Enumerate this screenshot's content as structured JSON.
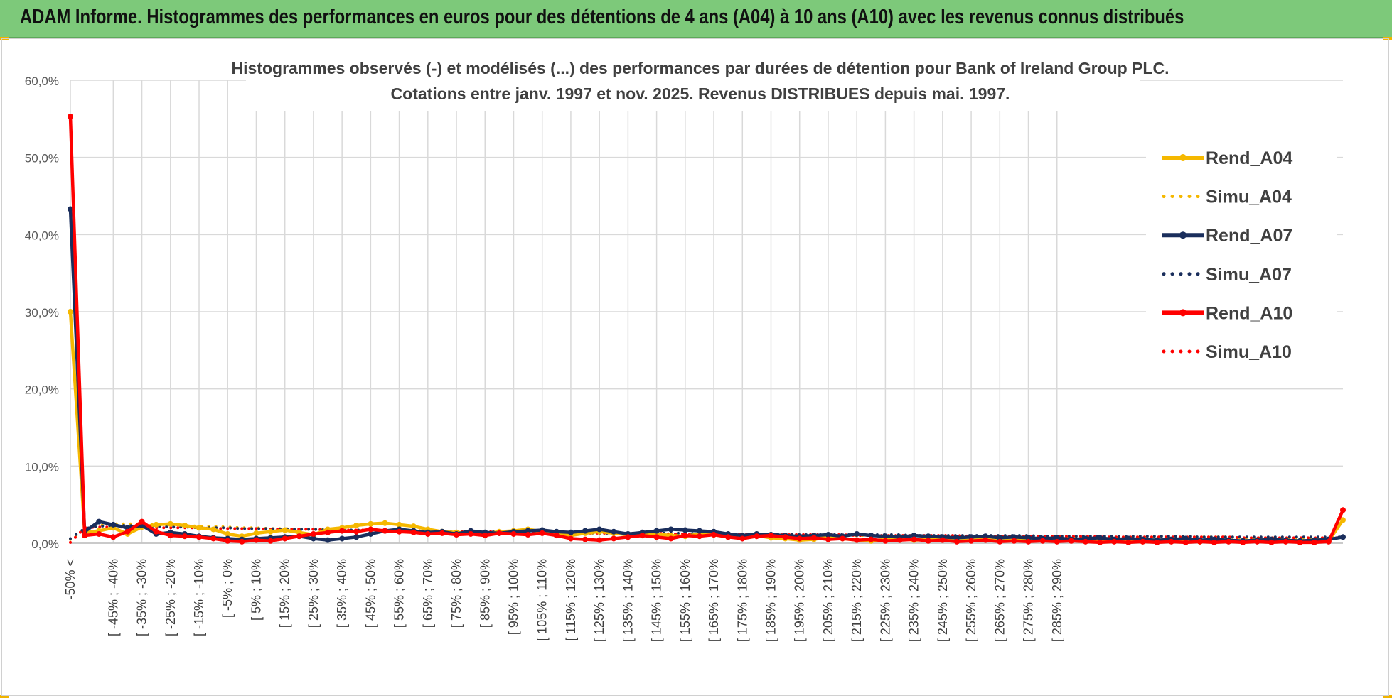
{
  "header": {
    "title": "ADAM Informe. Histogrammes des performances en euros pour des détentions de 4 ans (A04) à 10 ans (A10) avec les revenus connus distribués"
  },
  "colors": {
    "banner": "#7dc97a",
    "a04": "#f5b800",
    "a07": "#1a2e5c",
    "a10": "#ff0000",
    "grid": "#d9d9d9"
  },
  "chart_data": {
    "type": "line",
    "title": "Histogrammes observés (-) et modélisés (...) des performances par durées de détention pour Bank of Ireland Group PLC.",
    "subtitle": "Cotations entre janv. 1997 et nov. 2025. Revenus DISTRIBUES depuis mai. 1997.",
    "ylim": [
      0,
      60
    ],
    "y_ticks": [
      "0,0%",
      "10,0%",
      "20,0%",
      "30,0%",
      "40,0%",
      "50,0%",
      "60,0%"
    ],
    "grid": true,
    "legend_position": "right",
    "x_tick_labels": [
      "-50% <",
      "[ -45% ; -40%",
      "[ -35% ; -30%",
      "[ -25% ; -20%",
      "[ -15% ; -10%",
      "[ -5% ; 0%",
      "[ 5% ; 10%",
      "[ 15% ; 20%",
      "[ 25% ; 30%",
      "[ 35% ; 40%",
      "[ 45% ; 50%",
      "[ 55% ; 60%",
      "[ 65% ; 70%",
      "[ 75% ; 80%",
      "[ 85% ; 90%",
      "[ 95% ; 100%",
      "[ 105% ; 110%",
      "[ 115% ; 120%",
      "[ 125% ; 130%",
      "[ 135% ; 140%",
      "[ 145% ; 150%",
      "[ 155% ; 160%",
      "[ 165% ; 170%",
      "[ 175% ; 180%",
      "[ 185% ; 190%",
      "[ 195% ; 200%",
      "[ 205% ; 210%",
      "[ 215% ; 220%",
      "[ 225% ; 230%",
      "[ 235% ; 240%",
      "[ 245% ; 250%",
      "[ 255% ; 260%",
      "[ 265% ; 270%",
      "[ 275% ; 280%",
      "[ 285% ; 290%"
    ],
    "series": [
      {
        "name": "Rend_A04",
        "style": "solid",
        "color": "#f5b800",
        "values": [
          30.0,
          1.4,
          1.6,
          2.0,
          1.2,
          2.1,
          2.4,
          2.5,
          2.3,
          2.0,
          1.8,
          1.2,
          0.9,
          1.3,
          1.5,
          1.7,
          1.4,
          1.1,
          1.8,
          2.0,
          2.3,
          2.5,
          2.6,
          2.4,
          2.2,
          1.8,
          1.5,
          1.4,
          1.3,
          1.2,
          1.5,
          1.6,
          1.8,
          1.5,
          1.2,
          1.0,
          1.3,
          1.5,
          1.3,
          1.1,
          1.0,
          1.2,
          1.0,
          0.9,
          1.2,
          1.1,
          0.8,
          0.9,
          1.0,
          0.7,
          0.6,
          0.4,
          0.5,
          0.8,
          0.6,
          0.4,
          0.3,
          0.5,
          0.6,
          0.4,
          0.5,
          0.6,
          0.3,
          0.4,
          0.5,
          0.3,
          0.4,
          0.5,
          0.4,
          0.3,
          0.4,
          0.3,
          0.3,
          0.4,
          0.3,
          0.2,
          0.3,
          0.4,
          0.3,
          0.2,
          0.3,
          0.3,
          0.2,
          0.3,
          0.4,
          0.3,
          0.2,
          0.3,
          0.3,
          3.0
        ]
      },
      {
        "name": "Simu_A04",
        "style": "dotted",
        "color": "#f5b800",
        "values": [
          0.5,
          1.8,
          2.3,
          2.5,
          2.5,
          2.5,
          2.4,
          2.4,
          2.3,
          2.2,
          2.2,
          2.1,
          2.0,
          2.0,
          1.9,
          1.9,
          1.8,
          1.8,
          1.8,
          1.7,
          1.7,
          1.7,
          1.6,
          1.6,
          1.6,
          1.5,
          1.5,
          1.5,
          1.5,
          1.4,
          1.4,
          1.4,
          1.4,
          1.4,
          1.3,
          1.3,
          1.3,
          1.3,
          1.3,
          1.2,
          1.2,
          1.2,
          1.2,
          1.2,
          1.2,
          1.1,
          1.1,
          1.1,
          1.1,
          1.1,
          1.1,
          1.1,
          1.0,
          1.0,
          1.0,
          1.0,
          1.0,
          1.0,
          1.0,
          1.0,
          0.9,
          0.9,
          0.9,
          0.9,
          0.9,
          0.9,
          0.9,
          0.9,
          0.9,
          0.9,
          0.8,
          0.8,
          0.8,
          0.8,
          0.8,
          0.8,
          0.8,
          0.8,
          0.8,
          0.8,
          0.8,
          0.8,
          0.7,
          0.7,
          0.7,
          0.7,
          0.7,
          0.7,
          0.7,
          0.7
        ]
      },
      {
        "name": "Rend_A07",
        "style": "solid",
        "color": "#1a2e5c",
        "values": [
          43.3,
          1.5,
          2.8,
          2.4,
          2.0,
          2.3,
          1.2,
          1.4,
          1.2,
          0.9,
          0.7,
          0.6,
          0.5,
          0.6,
          0.7,
          0.8,
          0.9,
          0.6,
          0.4,
          0.6,
          0.8,
          1.2,
          1.6,
          1.8,
          1.6,
          1.4,
          1.5,
          1.2,
          1.6,
          1.4,
          1.3,
          1.5,
          1.6,
          1.7,
          1.5,
          1.4,
          1.6,
          1.8,
          1.5,
          1.2,
          1.4,
          1.6,
          1.8,
          1.7,
          1.6,
          1.5,
          1.2,
          1.0,
          1.2,
          1.1,
          1.0,
          0.9,
          1.0,
          1.1,
          0.9,
          1.2,
          1.0,
          0.9,
          0.8,
          1.0,
          0.9,
          0.8,
          0.7,
          0.8,
          0.9,
          0.7,
          0.8,
          0.7,
          0.6,
          0.7,
          0.5,
          0.6,
          0.7,
          0.5,
          0.6,
          0.5,
          0.4,
          0.5,
          0.6,
          0.4,
          0.5,
          0.4,
          0.3,
          0.4,
          0.5,
          0.4,
          0.3,
          0.4,
          0.5,
          0.8
        ]
      },
      {
        "name": "Simu_A07",
        "style": "dotted",
        "color": "#1a2e5c",
        "values": [
          0.6,
          1.9,
          2.2,
          2.3,
          2.3,
          2.2,
          2.2,
          2.1,
          2.1,
          2.0,
          2.0,
          2.0,
          1.9,
          1.9,
          1.9,
          1.8,
          1.8,
          1.8,
          1.7,
          1.7,
          1.7,
          1.7,
          1.6,
          1.6,
          1.6,
          1.6,
          1.5,
          1.5,
          1.5,
          1.5,
          1.5,
          1.4,
          1.4,
          1.4,
          1.4,
          1.4,
          1.4,
          1.3,
          1.3,
          1.3,
          1.3,
          1.3,
          1.3,
          1.3,
          1.2,
          1.2,
          1.2,
          1.2,
          1.2,
          1.2,
          1.2,
          1.1,
          1.1,
          1.1,
          1.1,
          1.1,
          1.1,
          1.1,
          1.1,
          1.0,
          1.0,
          1.0,
          1.0,
          1.0,
          1.0,
          1.0,
          1.0,
          1.0,
          0.9,
          0.9,
          0.9,
          0.9,
          0.9,
          0.9,
          0.9,
          0.9,
          0.9,
          0.9,
          0.9,
          0.8,
          0.8,
          0.8,
          0.8,
          0.8,
          0.8,
          0.8,
          0.8,
          0.8,
          0.8,
          0.8
        ]
      },
      {
        "name": "Rend_A10",
        "style": "solid",
        "color": "#ff0000",
        "values": [
          55.3,
          1.0,
          1.2,
          0.8,
          1.5,
          2.8,
          1.5,
          1.0,
          0.9,
          0.8,
          0.6,
          0.3,
          0.2,
          0.4,
          0.3,
          0.6,
          0.9,
          1.2,
          1.4,
          1.6,
          1.5,
          1.8,
          1.6,
          1.5,
          1.4,
          1.2,
          1.3,
          1.1,
          1.2,
          1.0,
          1.3,
          1.2,
          1.1,
          1.3,
          1.0,
          0.6,
          0.5,
          0.4,
          0.6,
          0.8,
          1.0,
          0.8,
          0.6,
          1.0,
          0.9,
          1.1,
          0.8,
          0.6,
          0.9,
          1.0,
          0.8,
          0.6,
          0.7,
          0.5,
          0.6,
          0.4,
          0.5,
          0.3,
          0.4,
          0.5,
          0.3,
          0.4,
          0.2,
          0.3,
          0.4,
          0.2,
          0.3,
          0.2,
          0.3,
          0.2,
          0.3,
          0.2,
          0.1,
          0.2,
          0.1,
          0.2,
          0.1,
          0.2,
          0.1,
          0.2,
          0.1,
          0.2,
          0.1,
          0.2,
          0.1,
          0.2,
          0.1,
          0.1,
          0.2,
          4.3
        ]
      },
      {
        "name": "Simu_A10",
        "style": "dotted",
        "color": "#ff0000",
        "values": [
          0.1,
          2.0,
          2.1,
          2.1,
          2.1,
          2.1,
          2.0,
          2.0,
          2.0,
          2.0,
          1.9,
          1.9,
          1.9,
          1.9,
          1.8,
          1.8,
          1.8,
          1.8,
          1.7,
          1.7,
          1.7,
          1.7,
          1.6,
          1.6,
          1.6,
          1.6,
          1.5,
          1.5,
          1.5,
          1.5,
          1.5,
          1.4,
          1.4,
          1.4,
          1.4,
          1.4,
          1.3,
          1.3,
          1.3,
          1.3,
          1.3,
          1.3,
          1.2,
          1.2,
          1.2,
          1.2,
          1.2,
          1.2,
          1.1,
          1.1,
          1.1,
          1.1,
          1.1,
          1.1,
          1.1,
          1.0,
          1.0,
          1.0,
          1.0,
          1.0,
          1.0,
          1.0,
          1.0,
          0.9,
          0.9,
          0.9,
          0.9,
          0.9,
          0.9,
          0.9,
          0.9,
          0.9,
          0.8,
          0.8,
          0.8,
          0.8,
          0.8,
          0.8,
          0.8,
          0.8,
          0.8,
          0.8,
          0.7,
          0.7,
          0.7,
          0.7,
          0.7,
          0.7,
          0.7,
          0.7
        ]
      }
    ]
  }
}
